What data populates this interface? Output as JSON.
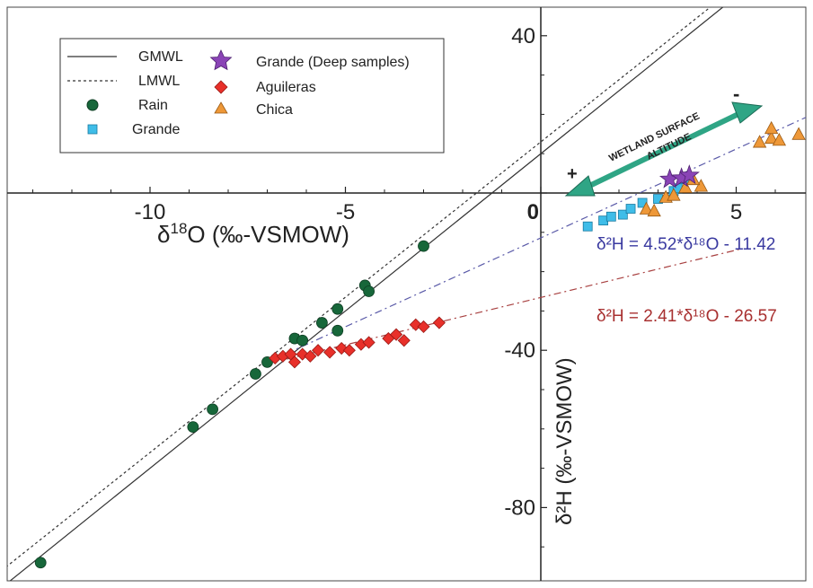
{
  "chart_data": {
    "type": "scatter",
    "xlabel_prefix": "δ",
    "xlabel_sup": "18",
    "xlabel_rest": "O (‰-VSMOW)",
    "ylabel": "δ²H (‰-VSMOW)",
    "xlim": [
      -13.8,
      7.0
    ],
    "ylim": [
      -96,
      47
    ],
    "x_ticks": [
      -10,
      -5,
      0,
      5
    ],
    "y_ticks": [
      40,
      0,
      -40,
      -80
    ],
    "x_tick_labels": [
      "-10",
      "-5",
      "0",
      "5"
    ],
    "y_tick_labels": [
      "40",
      "0",
      "-40",
      "-80"
    ],
    "grid": false,
    "legend_position": "top-left",
    "legend": {
      "gmwl": "GMWL",
      "lmwl": "LMWL",
      "rain": "Rain",
      "grande": "Grande",
      "deep": "Grande (Deep samples)",
      "aguileras": "Aguileras",
      "chica": "Chica"
    },
    "lines": [
      {
        "name": "GMWL",
        "slope": 8,
        "intercept": 10,
        "style": "solid",
        "color": "#333333"
      },
      {
        "name": "LMWL",
        "slope": 7.9,
        "intercept": 13,
        "style": "dotted",
        "color": "#333333"
      },
      {
        "name": "Grande fit",
        "slope": 4.52,
        "intercept": -11.42,
        "style": "dashdot",
        "color": "#5a5aa8",
        "from": -6.5,
        "to": 7.0
      },
      {
        "name": "Aguileras fit",
        "slope": 2.41,
        "intercept": -26.57,
        "style": "dashdot",
        "color": "#a84040",
        "from": -6.5,
        "to": 5.1
      }
    ],
    "series": [
      {
        "name": "Rain",
        "marker": "circle",
        "color": "#17673a",
        "points": [
          [
            -12.8,
            -94
          ],
          [
            -8.9,
            -59.5
          ],
          [
            -8.4,
            -55
          ],
          [
            -7.3,
            -46
          ],
          [
            -7.0,
            -43
          ],
          [
            -6.3,
            -37
          ],
          [
            -6.1,
            -37.5
          ],
          [
            -5.6,
            -33
          ],
          [
            -5.2,
            -29.5
          ],
          [
            -5.2,
            -35
          ],
          [
            -4.5,
            -23.5
          ],
          [
            -4.4,
            -25
          ],
          [
            -3.0,
            -13.5
          ]
        ]
      },
      {
        "name": "Aguileras",
        "marker": "diamond",
        "color": "#e8302a",
        "points": [
          [
            -6.8,
            -42
          ],
          [
            -6.6,
            -41.5
          ],
          [
            -6.4,
            -41
          ],
          [
            -6.3,
            -43
          ],
          [
            -6.1,
            -41
          ],
          [
            -5.9,
            -41.5
          ],
          [
            -5.7,
            -40
          ],
          [
            -5.4,
            -40.5
          ],
          [
            -5.1,
            -39.5
          ],
          [
            -4.9,
            -40
          ],
          [
            -4.6,
            -38.5
          ],
          [
            -4.4,
            -38
          ],
          [
            -3.9,
            -37
          ],
          [
            -3.7,
            -36
          ],
          [
            -3.5,
            -37.5
          ],
          [
            -3.2,
            -33.5
          ],
          [
            -3.0,
            -34
          ],
          [
            -2.6,
            -33
          ]
        ]
      },
      {
        "name": "Grande",
        "marker": "square",
        "color": "#3fbde8",
        "points": [
          [
            1.2,
            -8.5
          ],
          [
            1.6,
            -7
          ],
          [
            1.8,
            -6
          ],
          [
            2.1,
            -5.5
          ],
          [
            2.3,
            -4
          ],
          [
            2.6,
            -2.5
          ],
          [
            3.0,
            -1.5
          ],
          [
            3.4,
            0.5
          ],
          [
            3.5,
            1.2
          ],
          [
            3.7,
            3.5
          ]
        ]
      },
      {
        "name": "Chica",
        "marker": "triangle",
        "color": "#ee9838",
        "points": [
          [
            2.7,
            -4
          ],
          [
            2.9,
            -4.5
          ],
          [
            3.2,
            -1
          ],
          [
            3.4,
            -0.5
          ],
          [
            3.7,
            1.5
          ],
          [
            4.1,
            1.8
          ],
          [
            3.9,
            3.5
          ],
          [
            5.6,
            13
          ],
          [
            5.9,
            14
          ],
          [
            6.1,
            13.5
          ],
          [
            6.6,
            15
          ],
          [
            5.9,
            16.5
          ]
        ]
      },
      {
        "name": "Grande (Deep samples)",
        "marker": "star",
        "color": "#8a44b6",
        "points": [
          [
            3.3,
            3.5
          ],
          [
            3.6,
            3.8
          ],
          [
            3.8,
            4.5
          ]
        ]
      }
    ],
    "annotations": {
      "wetland_line1": "WETLAND SURFACE",
      "wetland_line2": "ALTITUDE",
      "plus": "+",
      "minus": "-",
      "eq_grande": "δ²H = 4.52*δ¹⁸O - 11.42",
      "eq_aguileras": "δ²H = 2.41*δ¹⁸O - 26.57"
    },
    "colors": {
      "arrow": "#2fa585",
      "grande_eq": "#3a3aa0",
      "aguileras_eq": "#a83030"
    }
  }
}
